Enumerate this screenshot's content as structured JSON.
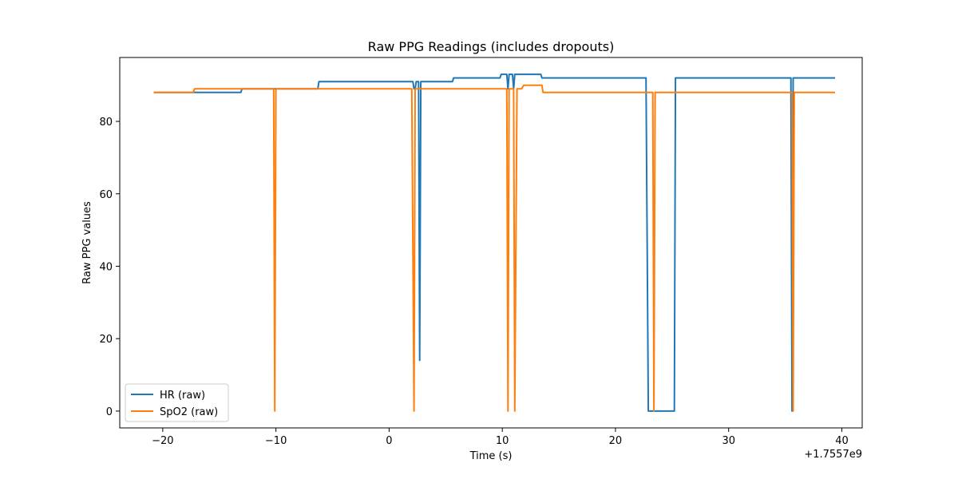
{
  "chart_data": {
    "type": "line",
    "title": "Raw PPG Readings (includes dropouts)",
    "xlabel": "Time (s)",
    "ylabel": "Raw PPG values",
    "x_offset_label": "+1.7557e9",
    "xlim": [
      -23.8,
      41.8
    ],
    "ylim": [
      -4.65,
      97.65
    ],
    "x_ticks": [
      -20,
      -10,
      0,
      10,
      20,
      30,
      40
    ],
    "y_ticks": [
      0,
      20,
      40,
      60,
      80
    ],
    "grid": false,
    "legend": "lower-left",
    "series": [
      {
        "name": "HR (raw)",
        "color": "#1f77b4",
        "points": [
          [
            -20.8,
            88
          ],
          [
            -13.1,
            88
          ],
          [
            -13.0,
            89
          ],
          [
            -6.3,
            89
          ],
          [
            -6.2,
            91
          ],
          [
            2.1,
            91
          ],
          [
            2.2,
            89
          ],
          [
            2.3,
            89
          ],
          [
            2.4,
            91
          ],
          [
            2.6,
            91
          ],
          [
            2.7,
            14
          ],
          [
            2.8,
            91
          ],
          [
            5.6,
            91
          ],
          [
            5.7,
            92
          ],
          [
            9.8,
            92
          ],
          [
            9.9,
            93
          ],
          [
            10.4,
            93
          ],
          [
            10.5,
            89
          ],
          [
            10.6,
            93
          ],
          [
            10.9,
            93
          ],
          [
            11.0,
            89
          ],
          [
            11.1,
            93
          ],
          [
            13.4,
            93
          ],
          [
            13.5,
            92
          ],
          [
            22.7,
            92
          ],
          [
            22.9,
            0
          ],
          [
            25.2,
            0
          ],
          [
            25.3,
            92
          ],
          [
            35.5,
            92
          ],
          [
            35.6,
            0
          ],
          [
            35.7,
            92
          ],
          [
            39.4,
            92
          ]
        ]
      },
      {
        "name": "SpO2 (raw)",
        "color": "#ff7f0e",
        "points": [
          [
            -20.8,
            88
          ],
          [
            -17.3,
            88
          ],
          [
            -17.2,
            89
          ],
          [
            -10.2,
            89
          ],
          [
            -10.1,
            0
          ],
          [
            -10.0,
            89
          ],
          [
            2.0,
            89
          ],
          [
            2.2,
            0
          ],
          [
            2.3,
            89
          ],
          [
            10.4,
            89
          ],
          [
            10.5,
            0
          ],
          [
            10.6,
            89
          ],
          [
            11.0,
            89
          ],
          [
            11.1,
            0
          ],
          [
            11.3,
            89
          ],
          [
            11.7,
            89
          ],
          [
            11.9,
            90
          ],
          [
            13.5,
            90
          ],
          [
            13.6,
            88
          ],
          [
            23.3,
            88
          ],
          [
            23.4,
            0
          ],
          [
            23.5,
            88
          ],
          [
            35.6,
            88
          ],
          [
            35.7,
            0
          ],
          [
            35.8,
            88
          ],
          [
            39.4,
            88
          ]
        ]
      }
    ]
  }
}
